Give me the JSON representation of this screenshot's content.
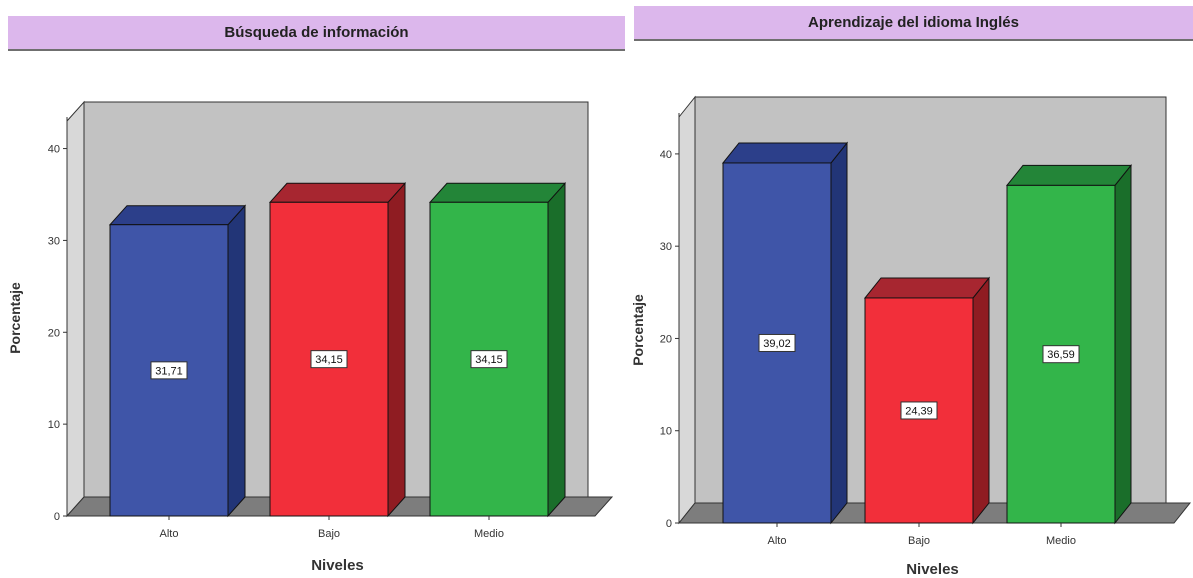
{
  "charts": [
    {
      "id": "left",
      "chart_data": {
        "type": "bar",
        "title": "Búsqueda de información",
        "xlabel": "Niveles",
        "ylabel": "Porcentaje",
        "categories": [
          "Alto",
          "Bajo",
          "Medio"
        ],
        "values": [
          31.71,
          34.15,
          34.15
        ],
        "data_labels": [
          "31,71",
          "34,15",
          "34,15"
        ],
        "yticks": [
          "0",
          "10",
          "20",
          "30",
          "40"
        ],
        "ylim": [
          0,
          43
        ],
        "grid": false,
        "style": "3d"
      }
    },
    {
      "id": "right",
      "chart_data": {
        "type": "bar",
        "title": "Aprendizaje del idioma Inglés",
        "xlabel": "Niveles",
        "ylabel": "Porcentaje",
        "categories": [
          "Alto",
          "Bajo",
          "Medio"
        ],
        "values": [
          39.02,
          24.39,
          36.59
        ],
        "data_labels": [
          "39,02",
          "24,39",
          "36,59"
        ],
        "yticks": [
          "0",
          "10",
          "20",
          "30",
          "40"
        ],
        "ylim": [
          0,
          44
        ],
        "grid": false,
        "style": "3d"
      }
    }
  ],
  "colors": {
    "Alto": {
      "front": "#3f55a8",
      "side": "#223577",
      "top": "#2c3f8a"
    },
    "Bajo": {
      "front": "#f22f3a",
      "side": "#8f1c22",
      "top": "#a72630"
    },
    "Medio": {
      "front": "#33b54a",
      "side": "#1a6e2a",
      "top": "#238538"
    },
    "wall": "#c2c2c2",
    "floor": "#7d7d7d",
    "title_bg": "#dcb7ec"
  }
}
